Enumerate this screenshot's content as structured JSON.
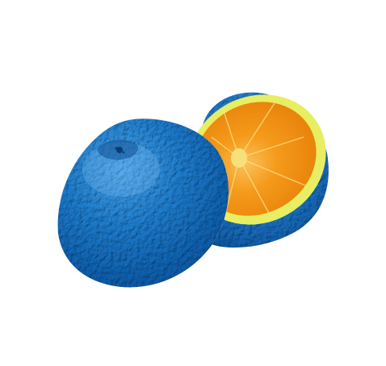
{
  "image": {
    "subject": "orange",
    "palette": {
      "background": "#ffffff",
      "peel_blue": "#1f7fd0",
      "peel_blue_dark": "#0b5cab",
      "peel_blue_light": "#44a3ee",
      "pith_yellow": "#e7ee62",
      "flesh_orange": "#f59b1b",
      "flesh_orange_deep": "#e9850c"
    }
  }
}
